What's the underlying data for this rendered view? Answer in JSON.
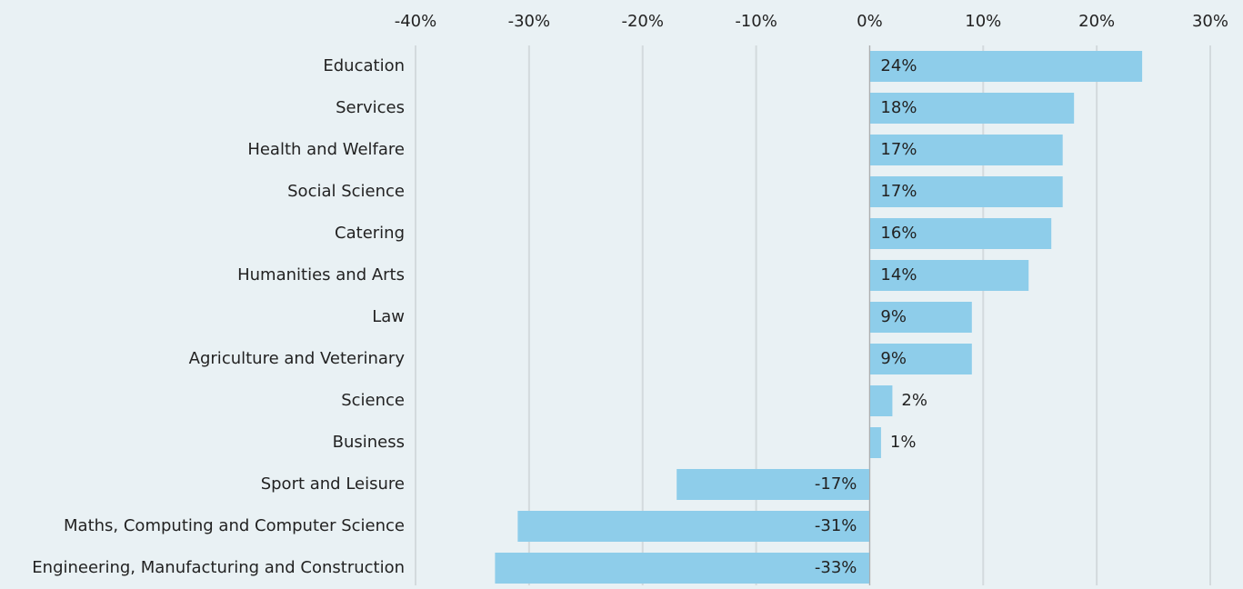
{
  "chart_data": {
    "type": "barh",
    "categories": [
      "Education",
      "Services",
      "Health and Welfare",
      "Social Science",
      "Catering",
      "Humanities and Arts",
      "Law",
      "Agriculture and Veterinary",
      "Science",
      "Business",
      "Sport and Leisure",
      "Maths, Computing and Computer Science",
      "Engineering, Manufacturing and Construction"
    ],
    "values": [
      24,
      18,
      17,
      17,
      16,
      14,
      9,
      9,
      2,
      1,
      -17,
      -31,
      -33
    ],
    "value_labels": [
      "24%",
      "18%",
      "17%",
      "17%",
      "16%",
      "14%",
      "9%",
      "9%",
      "2%",
      "1%",
      "-17%",
      "-31%",
      "-33%"
    ],
    "color": "#8ecdea",
    "xlim": [
      -40,
      30
    ],
    "xticks": [
      {
        "value": -40,
        "label": "-40%"
      },
      {
        "value": -30,
        "label": "-30%"
      },
      {
        "value": -20,
        "label": "-20%"
      },
      {
        "value": -10,
        "label": "-10%"
      },
      {
        "value": 0,
        "label": "0%"
      },
      {
        "value": 10,
        "label": "10%"
      },
      {
        "value": 20,
        "label": "20%"
      },
      {
        "value": 30,
        "label": "30%"
      }
    ],
    "grid": true
  }
}
